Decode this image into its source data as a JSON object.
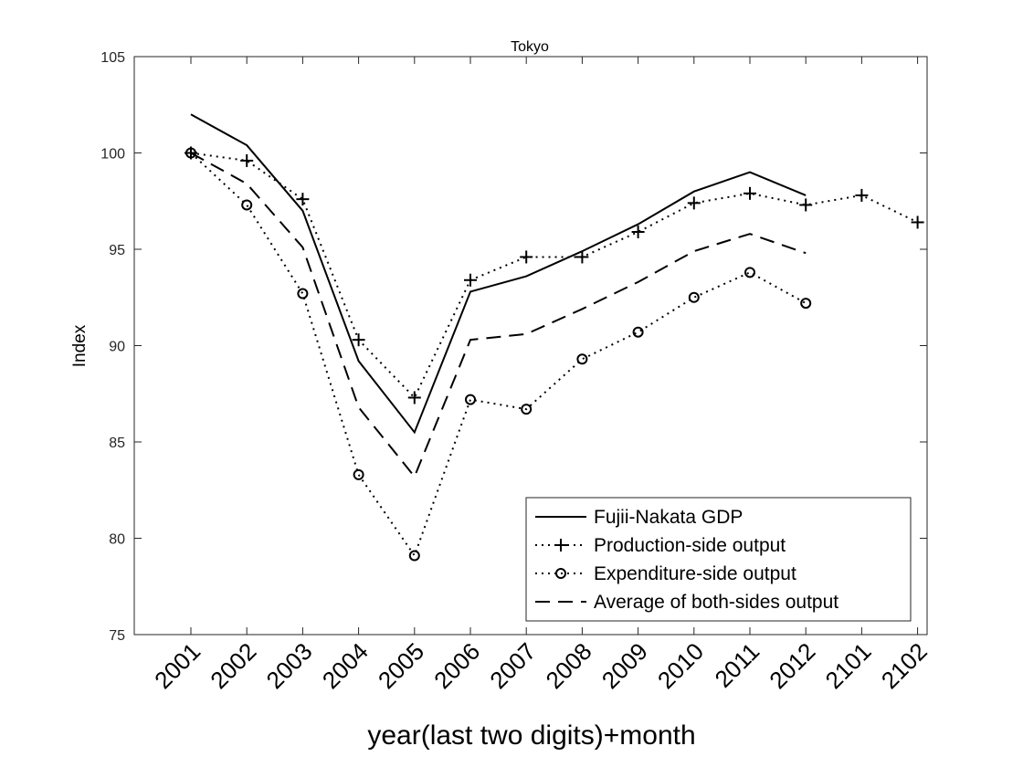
{
  "chart_data": {
    "type": "line",
    "title": "Tokyo",
    "xlabel": "year(last two digits)+month",
    "ylabel": "Index",
    "categories": [
      "2001",
      "2002",
      "2003",
      "2004",
      "2005",
      "2006",
      "2007",
      "2008",
      "2009",
      "2010",
      "2011",
      "2012",
      "2101",
      "2102"
    ],
    "ylim": [
      75,
      105
    ],
    "yticks": [
      75,
      80,
      85,
      90,
      95,
      100,
      105
    ],
    "grid": false,
    "legend_position": "bottom-right",
    "series": [
      {
        "name": "Fujii-Nakata GDP",
        "style": "solid",
        "marker": "none",
        "values": [
          102.0,
          100.4,
          97.0,
          89.2,
          85.5,
          92.8,
          93.6,
          94.9,
          96.3,
          98.0,
          99.0,
          97.8,
          null,
          null
        ]
      },
      {
        "name": "Production-side output",
        "style": "dotted",
        "marker": "plus",
        "values": [
          100.0,
          99.6,
          97.6,
          90.3,
          87.3,
          93.4,
          94.6,
          94.6,
          95.9,
          97.4,
          97.9,
          97.3,
          97.8,
          96.4
        ]
      },
      {
        "name": "Expenditure-side output",
        "style": "dotted",
        "marker": "circle",
        "values": [
          100.0,
          97.3,
          92.7,
          83.3,
          79.1,
          87.2,
          86.7,
          89.3,
          90.7,
          92.5,
          93.8,
          92.2,
          null,
          null
        ]
      },
      {
        "name": "Average of both-sides output",
        "style": "dashed",
        "marker": "none",
        "values": [
          100.0,
          98.4,
          95.1,
          86.8,
          83.2,
          90.3,
          90.6,
          91.9,
          93.3,
          94.9,
          95.8,
          94.8,
          null,
          null
        ]
      }
    ]
  }
}
